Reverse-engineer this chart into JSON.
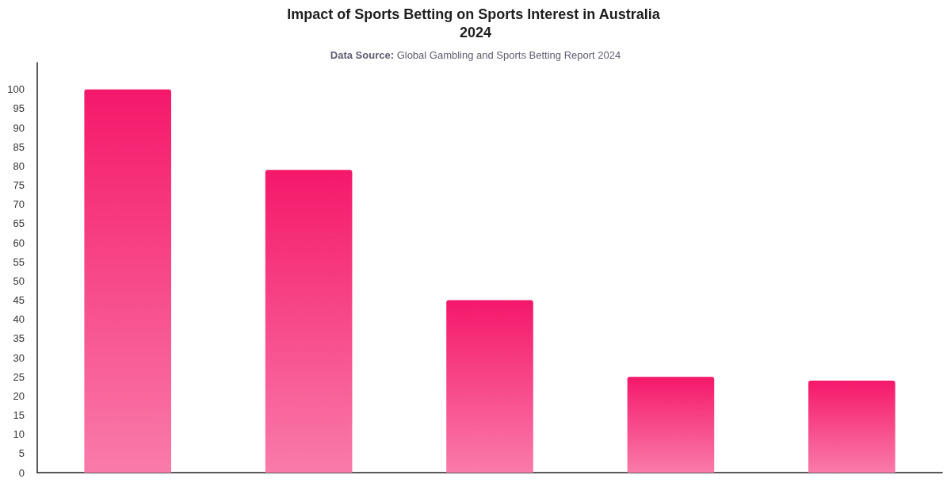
{
  "chart_data": {
    "type": "bar",
    "title": "Impact of Sports Betting on Sports Interest in Australia 2024",
    "subtitle": "Data Source: Global Gambling and Sports Betting Report 2024",
    "categories": [
      null,
      null,
      null,
      null,
      null
    ],
    "values": [
      100,
      79,
      45,
      25,
      24
    ],
    "color": "#f5186a",
    "ylim": [
      0,
      107
    ],
    "yticks": [
      0,
      5,
      10,
      15,
      20,
      25,
      30,
      35,
      40,
      45,
      50,
      55,
      60,
      65,
      70,
      75,
      80,
      85,
      90,
      95,
      100
    ],
    "grid": false,
    "tick_labels": "y"
  }
}
